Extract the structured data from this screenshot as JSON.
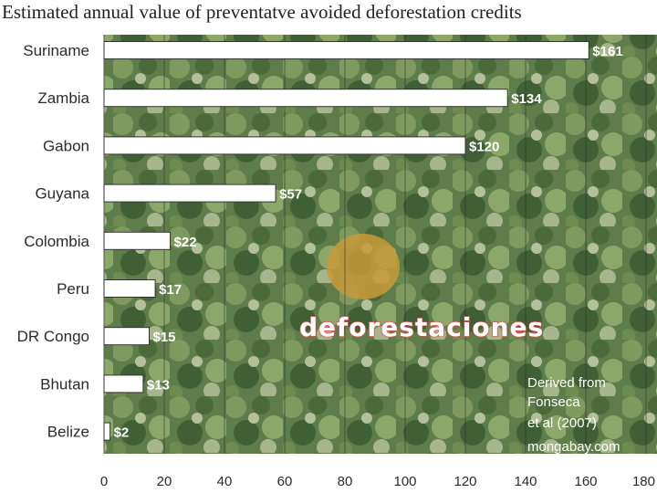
{
  "title": "Estimated annual value of  preventatve avoided deforestation credits",
  "colors": {
    "bar_fill": "#ffffff",
    "bar_stroke": "#333333",
    "forest_base": "#5f7d4a",
    "watermark_text": "#ffffff",
    "watermark_stroke": "#d9534f"
  },
  "watermark": "deforestaciones",
  "credit_lines": [
    "Derived from",
    "Fonseca",
    "et al (2007)",
    "mongabay.com"
  ],
  "chart_data": {
    "type": "bar",
    "orientation": "horizontal",
    "title": "Estimated annual value of  preventatve avoided deforestation credits",
    "categories": [
      "Suriname",
      "Zambia",
      "Gabon",
      "Guyana",
      "Colombia",
      "Peru",
      "DR Congo",
      "Bhutan",
      "Belize"
    ],
    "values": [
      161,
      134,
      120,
      57,
      22,
      17,
      15,
      13,
      2
    ],
    "value_labels": [
      "$161",
      "$134",
      "$120",
      "$57",
      "$22",
      "$17",
      "$15",
      "$13",
      "$2"
    ],
    "xlim": [
      0,
      180
    ],
    "xticks": [
      0,
      20,
      40,
      60,
      80,
      100,
      120,
      140,
      160,
      180
    ],
    "grid": true,
    "legend": "none"
  }
}
